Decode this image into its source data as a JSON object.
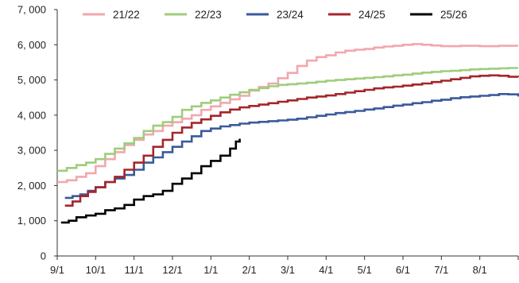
{
  "chart_data": {
    "type": "line",
    "title": "",
    "xlabel": "",
    "ylabel": "",
    "x_ticks": [
      "9/1",
      "10/1",
      "11/1",
      "12/1",
      "1/1",
      "2/1",
      "3/1",
      "4/1",
      "5/1",
      "6/1",
      "7/1",
      "8/1"
    ],
    "y_ticks": [
      "0",
      "1, 000",
      "2, 000",
      "3, 000",
      "4, 000",
      "5, 000",
      "6, 000",
      "7, 000"
    ],
    "ylim": [
      0,
      7000
    ],
    "x_unit": "months since 9/1",
    "xlim": [
      0,
      12
    ],
    "grid": false,
    "legend_position": "top",
    "series": [
      {
        "name": "21/22",
        "color": "#f2a7ad",
        "points": [
          [
            0.0,
            2100
          ],
          [
            0.25,
            2150
          ],
          [
            0.5,
            2250
          ],
          [
            0.75,
            2350
          ],
          [
            1.0,
            2550
          ],
          [
            1.25,
            2750
          ],
          [
            1.5,
            2950
          ],
          [
            1.75,
            3150
          ],
          [
            2.0,
            3300
          ],
          [
            2.25,
            3450
          ],
          [
            2.5,
            3550
          ],
          [
            2.75,
            3700
          ],
          [
            3.0,
            3800
          ],
          [
            3.25,
            3900
          ],
          [
            3.5,
            4000
          ],
          [
            3.75,
            4150
          ],
          [
            4.0,
            4250
          ],
          [
            4.25,
            4350
          ],
          [
            4.5,
            4450
          ],
          [
            4.75,
            4550
          ],
          [
            5.0,
            4700
          ],
          [
            5.25,
            4800
          ],
          [
            5.5,
            4900
          ],
          [
            5.75,
            5050
          ],
          [
            6.0,
            5200
          ],
          [
            6.25,
            5400
          ],
          [
            6.5,
            5550
          ],
          [
            6.75,
            5650
          ],
          [
            7.0,
            5700
          ],
          [
            7.25,
            5780
          ],
          [
            7.5,
            5830
          ],
          [
            7.75,
            5860
          ],
          [
            8.0,
            5880
          ],
          [
            8.25,
            5920
          ],
          [
            8.5,
            5950
          ],
          [
            8.75,
            5970
          ],
          [
            9.0,
            6000
          ],
          [
            9.25,
            6020
          ],
          [
            9.5,
            6000
          ],
          [
            9.75,
            5980
          ],
          [
            10.0,
            5960
          ],
          [
            10.25,
            5960
          ],
          [
            10.5,
            5970
          ],
          [
            10.75,
            5970
          ],
          [
            11.0,
            5960
          ],
          [
            11.25,
            5960
          ],
          [
            11.5,
            5970
          ],
          [
            11.75,
            5970
          ],
          [
            12.0,
            5970
          ]
        ]
      },
      {
        "name": "22/23",
        "color": "#9fcd7c",
        "points": [
          [
            0.0,
            2420
          ],
          [
            0.25,
            2500
          ],
          [
            0.5,
            2580
          ],
          [
            0.75,
            2650
          ],
          [
            1.0,
            2750
          ],
          [
            1.25,
            2900
          ],
          [
            1.5,
            3050
          ],
          [
            1.75,
            3200
          ],
          [
            2.0,
            3350
          ],
          [
            2.25,
            3550
          ],
          [
            2.5,
            3700
          ],
          [
            2.75,
            3800
          ],
          [
            3.0,
            3950
          ],
          [
            3.25,
            4150
          ],
          [
            3.5,
            4250
          ],
          [
            3.75,
            4350
          ],
          [
            4.0,
            4420
          ],
          [
            4.25,
            4500
          ],
          [
            4.5,
            4580
          ],
          [
            4.75,
            4650
          ],
          [
            5.0,
            4720
          ],
          [
            5.25,
            4770
          ],
          [
            5.5,
            4820
          ],
          [
            5.75,
            4860
          ],
          [
            6.0,
            4880
          ],
          [
            6.25,
            4900
          ],
          [
            6.5,
            4920
          ],
          [
            6.75,
            4950
          ],
          [
            7.0,
            4980
          ],
          [
            7.25,
            5000
          ],
          [
            7.5,
            5020
          ],
          [
            7.75,
            5040
          ],
          [
            8.0,
            5060
          ],
          [
            8.25,
            5080
          ],
          [
            8.5,
            5100
          ],
          [
            8.75,
            5130
          ],
          [
            9.0,
            5150
          ],
          [
            9.25,
            5180
          ],
          [
            9.5,
            5210
          ],
          [
            9.75,
            5230
          ],
          [
            10.0,
            5250
          ],
          [
            10.25,
            5260
          ],
          [
            10.5,
            5280
          ],
          [
            10.75,
            5300
          ],
          [
            11.0,
            5310
          ],
          [
            11.25,
            5320
          ],
          [
            11.5,
            5330
          ],
          [
            11.75,
            5340
          ],
          [
            12.0,
            5340
          ]
        ]
      },
      {
        "name": "23/24",
        "color": "#3a5a9b",
        "points": [
          [
            0.2,
            1650
          ],
          [
            0.4,
            1700
          ],
          [
            0.6,
            1750
          ],
          [
            0.8,
            1850
          ],
          [
            1.0,
            1950
          ],
          [
            1.25,
            2100
          ],
          [
            1.5,
            2200
          ],
          [
            1.75,
            2300
          ],
          [
            2.0,
            2450
          ],
          [
            2.25,
            2650
          ],
          [
            2.5,
            2800
          ],
          [
            2.75,
            2950
          ],
          [
            3.0,
            3100
          ],
          [
            3.25,
            3250
          ],
          [
            3.5,
            3400
          ],
          [
            3.75,
            3550
          ],
          [
            4.0,
            3620
          ],
          [
            4.25,
            3680
          ],
          [
            4.5,
            3720
          ],
          [
            4.75,
            3760
          ],
          [
            5.0,
            3790
          ],
          [
            5.25,
            3810
          ],
          [
            5.5,
            3830
          ],
          [
            5.75,
            3850
          ],
          [
            6.0,
            3870
          ],
          [
            6.25,
            3900
          ],
          [
            6.5,
            3940
          ],
          [
            6.75,
            3980
          ],
          [
            7.0,
            4020
          ],
          [
            7.25,
            4060
          ],
          [
            7.5,
            4090
          ],
          [
            7.75,
            4120
          ],
          [
            8.0,
            4160
          ],
          [
            8.25,
            4190
          ],
          [
            8.5,
            4230
          ],
          [
            8.75,
            4270
          ],
          [
            9.0,
            4300
          ],
          [
            9.25,
            4340
          ],
          [
            9.5,
            4370
          ],
          [
            9.75,
            4410
          ],
          [
            10.0,
            4440
          ],
          [
            10.25,
            4480
          ],
          [
            10.5,
            4510
          ],
          [
            10.75,
            4530
          ],
          [
            11.0,
            4550
          ],
          [
            11.25,
            4570
          ],
          [
            11.5,
            4600
          ],
          [
            11.75,
            4590
          ],
          [
            12.0,
            4530
          ]
        ]
      },
      {
        "name": "24/25",
        "color": "#a5262b",
        "points": [
          [
            0.2,
            1430
          ],
          [
            0.4,
            1550
          ],
          [
            0.6,
            1700
          ],
          [
            0.8,
            1820
          ],
          [
            1.0,
            1950
          ],
          [
            1.25,
            2100
          ],
          [
            1.5,
            2250
          ],
          [
            1.75,
            2450
          ],
          [
            2.0,
            2650
          ],
          [
            2.25,
            2850
          ],
          [
            2.5,
            3100
          ],
          [
            2.75,
            3300
          ],
          [
            3.0,
            3500
          ],
          [
            3.25,
            3650
          ],
          [
            3.5,
            3780
          ],
          [
            3.75,
            3880
          ],
          [
            4.0,
            3980
          ],
          [
            4.25,
            4080
          ],
          [
            4.5,
            4160
          ],
          [
            4.75,
            4220
          ],
          [
            5.0,
            4260
          ],
          [
            5.25,
            4300
          ],
          [
            5.5,
            4340
          ],
          [
            5.75,
            4380
          ],
          [
            6.0,
            4420
          ],
          [
            6.25,
            4460
          ],
          [
            6.5,
            4500
          ],
          [
            6.75,
            4530
          ],
          [
            7.0,
            4560
          ],
          [
            7.25,
            4600
          ],
          [
            7.5,
            4640
          ],
          [
            7.75,
            4680
          ],
          [
            8.0,
            4720
          ],
          [
            8.25,
            4760
          ],
          [
            8.5,
            4790
          ],
          [
            8.75,
            4810
          ],
          [
            9.0,
            4840
          ],
          [
            9.25,
            4870
          ],
          [
            9.5,
            4900
          ],
          [
            9.75,
            4940
          ],
          [
            10.0,
            4980
          ],
          [
            10.25,
            5020
          ],
          [
            10.5,
            5060
          ],
          [
            10.75,
            5100
          ],
          [
            11.0,
            5120
          ],
          [
            11.25,
            5130
          ],
          [
            11.5,
            5120
          ],
          [
            11.75,
            5090
          ],
          [
            12.0,
            5080
          ]
        ]
      },
      {
        "name": "25/26",
        "color": "#000000",
        "points": [
          [
            0.1,
            950
          ],
          [
            0.3,
            1000
          ],
          [
            0.5,
            1100
          ],
          [
            0.75,
            1150
          ],
          [
            1.0,
            1200
          ],
          [
            1.25,
            1300
          ],
          [
            1.5,
            1350
          ],
          [
            1.75,
            1450
          ],
          [
            2.0,
            1600
          ],
          [
            2.25,
            1700
          ],
          [
            2.5,
            1750
          ],
          [
            2.75,
            1850
          ],
          [
            3.0,
            2050
          ],
          [
            3.25,
            2200
          ],
          [
            3.5,
            2350
          ],
          [
            3.75,
            2550
          ],
          [
            4.0,
            2700
          ],
          [
            4.25,
            2850
          ],
          [
            4.5,
            3050
          ],
          [
            4.65,
            3250
          ],
          [
            4.75,
            3330
          ]
        ]
      }
    ]
  }
}
